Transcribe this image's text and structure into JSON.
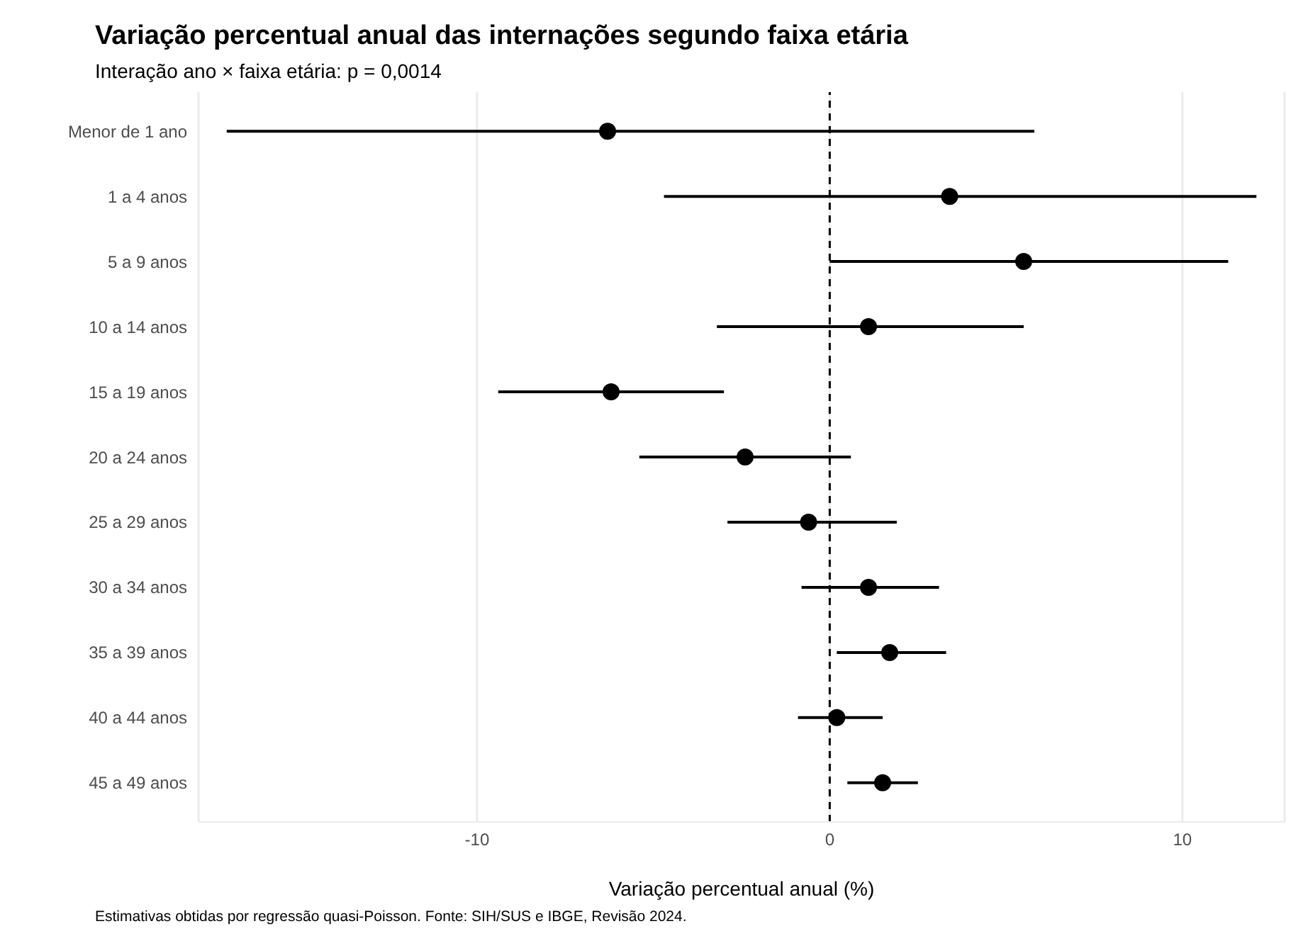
{
  "chart_data": {
    "type": "scatter",
    "orientation": "horizontal",
    "title": "Variação percentual anual das internações segundo faixa etária",
    "subtitle": "Interação ano × faixa etária: p = 0,0014",
    "xlabel": "Variação percentual anual (%)",
    "annotations": [
      "Estimativas obtidas por regressão quasi-Poisson. Fonte: SIH/SUS e IBGE, Revisão 2024."
    ],
    "categories": [
      "Menor de 1 ano",
      "1 a 4 anos",
      "5 a 9 anos",
      "10 a 14 anos",
      "15 a 19 anos",
      "20 a 24 anos",
      "25 a 29 anos",
      "30 a 34 anos",
      "35 a 39 anos",
      "40 a 44 anos",
      "45 a 49 anos"
    ],
    "values": [
      -6.3,
      3.4,
      5.5,
      1.1,
      -6.2,
      -2.4,
      -0.6,
      1.1,
      1.7,
      0.2,
      1.5
    ],
    "errors": [
      [
        -17.1,
        5.8
      ],
      [
        -4.7,
        12.1
      ],
      [
        0.0,
        11.3
      ],
      [
        -3.2,
        5.5
      ],
      [
        -9.4,
        -3.0
      ],
      [
        -5.4,
        0.6
      ],
      [
        -2.9,
        1.9
      ],
      [
        -0.8,
        3.1
      ],
      [
        0.2,
        3.3
      ],
      [
        -0.9,
        1.5
      ],
      [
        0.5,
        2.5
      ]
    ],
    "color": "#000000",
    "marker": "circle",
    "xlim": [
      -17.9,
      12.9
    ],
    "xticks": [
      -10,
      0,
      10
    ],
    "grid": "x",
    "ref_lines": [
      {
        "axis": "x",
        "value": 0,
        "line_style": "dashed",
        "color": "#000000"
      }
    ]
  }
}
